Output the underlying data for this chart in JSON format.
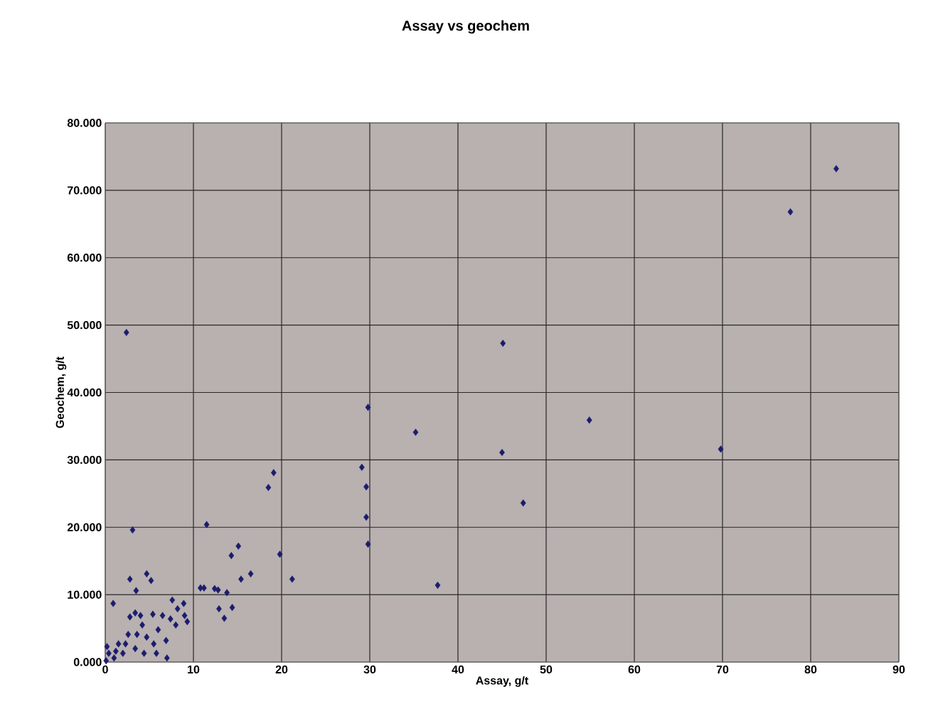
{
  "chart_data": {
    "type": "scatter",
    "title": "Assay vs geochem",
    "xlabel": "Assay, g/t",
    "ylabel": "Geochem, g/t",
    "xlim": [
      0,
      90
    ],
    "ylim": [
      0,
      80
    ],
    "xticks": [
      0,
      10,
      20,
      30,
      40,
      50,
      60,
      70,
      80,
      90
    ],
    "yticks": [
      {
        "value": 0,
        "label": "0.000"
      },
      {
        "value": 10,
        "label": "10.000"
      },
      {
        "value": 20,
        "label": "20.000"
      },
      {
        "value": 30,
        "label": "30.000"
      },
      {
        "value": 40,
        "label": "40.000"
      },
      {
        "value": 50,
        "label": "50.000"
      },
      {
        "value": 60,
        "label": "60.000"
      },
      {
        "value": 70,
        "label": "70.000"
      },
      {
        "value": 80,
        "label": "80.000"
      }
    ],
    "grid": true,
    "marker": "diamond",
    "series": [
      {
        "color": "#1c1c6e",
        "x": [
          2.4,
          45.1,
          29.8,
          35.2,
          54.9,
          45.0,
          69.8,
          77.7,
          82.9,
          29.1,
          29.6,
          29.6,
          29.8,
          47.4,
          37.7,
          19.1,
          18.5,
          11.5,
          3.1,
          19.8,
          15.1,
          14.3,
          16.5,
          15.4,
          21.2,
          10.8,
          11.2,
          12.4,
          12.8,
          13.8,
          12.9,
          14.4,
          13.5,
          2.8,
          4.7,
          5.2,
          3.5,
          0.9,
          7.6,
          8.9,
          8.2,
          9.0,
          9.3,
          8.0,
          3.4,
          2.8,
          4.0,
          5.4,
          6.5,
          7.4,
          6.9,
          7.0,
          5.8,
          4.7,
          4.2,
          2.6,
          1.5,
          0.4,
          0.1,
          2.0,
          3.4,
          1.0,
          4.4,
          5.5,
          3.6,
          6.0,
          2.3,
          0.2,
          1.2
        ],
        "values": [
          48.9,
          47.3,
          37.8,
          34.1,
          35.9,
          31.1,
          31.6,
          66.8,
          73.2,
          28.9,
          26.0,
          21.5,
          17.5,
          23.6,
          11.4,
          28.1,
          25.9,
          20.4,
          19.6,
          16.0,
          17.2,
          15.8,
          13.1,
          12.3,
          12.3,
          11.0,
          11.0,
          10.9,
          10.7,
          10.3,
          7.9,
          8.1,
          6.5,
          12.3,
          13.1,
          12.1,
          10.6,
          8.7,
          9.2,
          8.7,
          7.9,
          6.9,
          6.0,
          5.5,
          7.3,
          6.7,
          6.9,
          7.1,
          6.9,
          6.4,
          3.2,
          0.6,
          1.3,
          3.7,
          5.5,
          4.1,
          2.7,
          1.3,
          0.2,
          1.3,
          2.0,
          0.6,
          1.3,
          2.7,
          4.1,
          4.8,
          2.7,
          2.3,
          1.6
        ]
      }
    ]
  }
}
